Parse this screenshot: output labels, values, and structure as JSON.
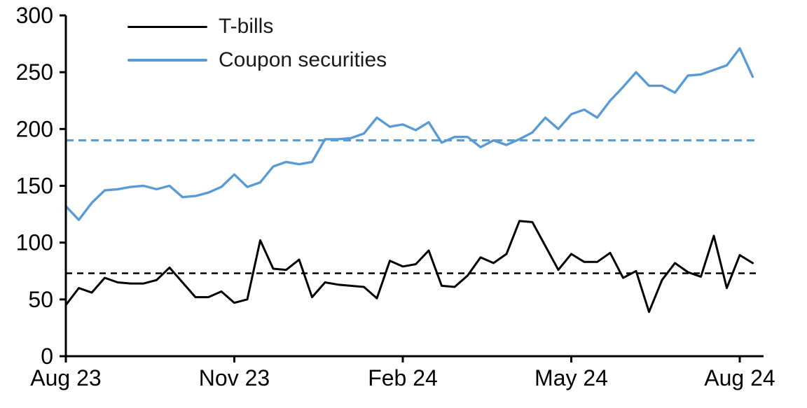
{
  "chart_data": {
    "type": "line",
    "title": "",
    "x_description": "Weekly observations from Aug 2023 to Aug 2024",
    "x_axis": {
      "tick_labels": [
        "Aug 23",
        "Nov 23",
        "Feb 24",
        "May 24",
        "Aug 24"
      ],
      "tick_weeks": [
        1,
        14,
        27,
        40,
        53
      ],
      "total_weeks": 54
    },
    "y_axis": {
      "min": 0,
      "max": 300,
      "step": 50,
      "tick_labels": [
        "0",
        "50",
        "100",
        "150",
        "200",
        "250",
        "300"
      ]
    },
    "grid": "off",
    "legend_position": "top-left-inside",
    "series": [
      {
        "name": "T-bills",
        "color": "#000000",
        "style": "solid",
        "values": [
          45,
          60,
          56,
          69,
          65,
          64,
          64,
          67,
          78,
          65,
          52,
          52,
          57,
          47,
          50,
          102,
          77,
          76,
          85,
          52,
          65,
          63,
          62,
          61,
          51,
          84,
          79,
          81,
          93,
          62,
          61,
          71,
          87,
          82,
          90,
          119,
          118,
          97,
          76,
          90,
          83,
          83,
          91,
          69,
          75,
          39,
          67,
          82,
          74,
          70,
          106,
          60,
          89,
          82
        ]
      },
      {
        "name": "Coupon securities",
        "color": "#5B9BD5",
        "style": "solid",
        "values": [
          132,
          120,
          135,
          146,
          147,
          149,
          150,
          147,
          150,
          140,
          141,
          144,
          149,
          160,
          149,
          153,
          167,
          171,
          169,
          171,
          191,
          191,
          192,
          196,
          210,
          202,
          204,
          199,
          206,
          188,
          193,
          193,
          184,
          190,
          186,
          191,
          197,
          210,
          200,
          213,
          217,
          210,
          225,
          237,
          250,
          238,
          238,
          232,
          247,
          248,
          252,
          256,
          271,
          246
        ]
      },
      {
        "name": "T-bills average",
        "color": "#000000",
        "style": "dashed",
        "value": 73
      },
      {
        "name": "Coupon securities average",
        "color": "#5B9BD5",
        "style": "dashed",
        "value": 190
      }
    ]
  },
  "colors": {
    "tbills": "#000000",
    "coupon_securities": "#5B9BD5",
    "axis": "#000000",
    "background": "#FFFFFF",
    "text": "#000000"
  }
}
